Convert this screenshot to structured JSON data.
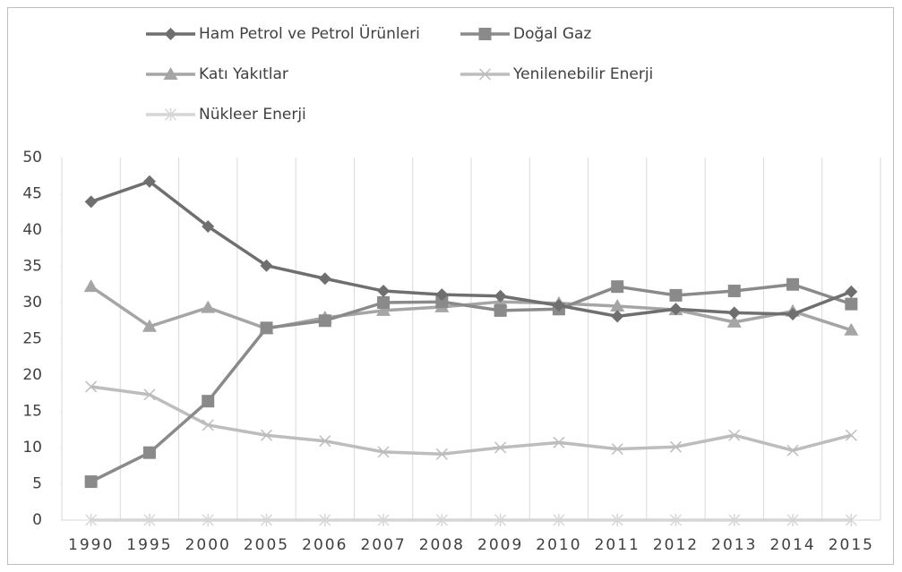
{
  "chart_data": {
    "type": "line",
    "categories": [
      "1990",
      "1995",
      "2000",
      "2005",
      "2006",
      "2007",
      "2008",
      "2009",
      "2010",
      "2011",
      "2012",
      "2013",
      "2014",
      "2015"
    ],
    "series": [
      {
        "name": "Ham Petrol ve Petrol Ürünleri",
        "color": "#6f6f6f",
        "marker": "diamond",
        "values": [
          43.9,
          46.7,
          40.5,
          35.1,
          33.3,
          31.6,
          31.1,
          30.9,
          29.6,
          28.1,
          29.1,
          28.6,
          28.4,
          31.5
        ]
      },
      {
        "name": "Doğal Gaz",
        "color": "#8a8a8a",
        "marker": "square",
        "values": [
          5.3,
          9.3,
          16.4,
          26.5,
          27.5,
          30.0,
          30.1,
          28.9,
          29.1,
          32.2,
          31.0,
          31.6,
          32.5,
          29.8
        ]
      },
      {
        "name": "Katı Yakıtlar",
        "color": "#a5a5a5",
        "marker": "triangle",
        "values": [
          32.2,
          26.7,
          29.3,
          26.4,
          27.9,
          28.9,
          29.4,
          30.1,
          29.9,
          29.5,
          29.0,
          27.3,
          28.8,
          26.2
        ]
      },
      {
        "name": "Yenilenebilir Enerji",
        "color": "#bdbdbd",
        "marker": "x",
        "values": [
          18.4,
          17.3,
          13.1,
          11.7,
          10.9,
          9.4,
          9.1,
          10.0,
          10.7,
          9.8,
          10.1,
          11.7,
          9.6,
          11.7
        ]
      },
      {
        "name": "Nükleer Enerji",
        "color": "#d6d6d6",
        "marker": "star",
        "values": [
          0,
          0,
          0,
          0,
          0,
          0,
          0,
          0,
          0,
          0,
          0,
          0,
          0,
          0
        ]
      }
    ],
    "ylim": [
      0,
      50
    ],
    "yticks": [
      0,
      5,
      10,
      15,
      20,
      25,
      30,
      35,
      40,
      45,
      50
    ],
    "grid": "x",
    "legend": "top"
  }
}
